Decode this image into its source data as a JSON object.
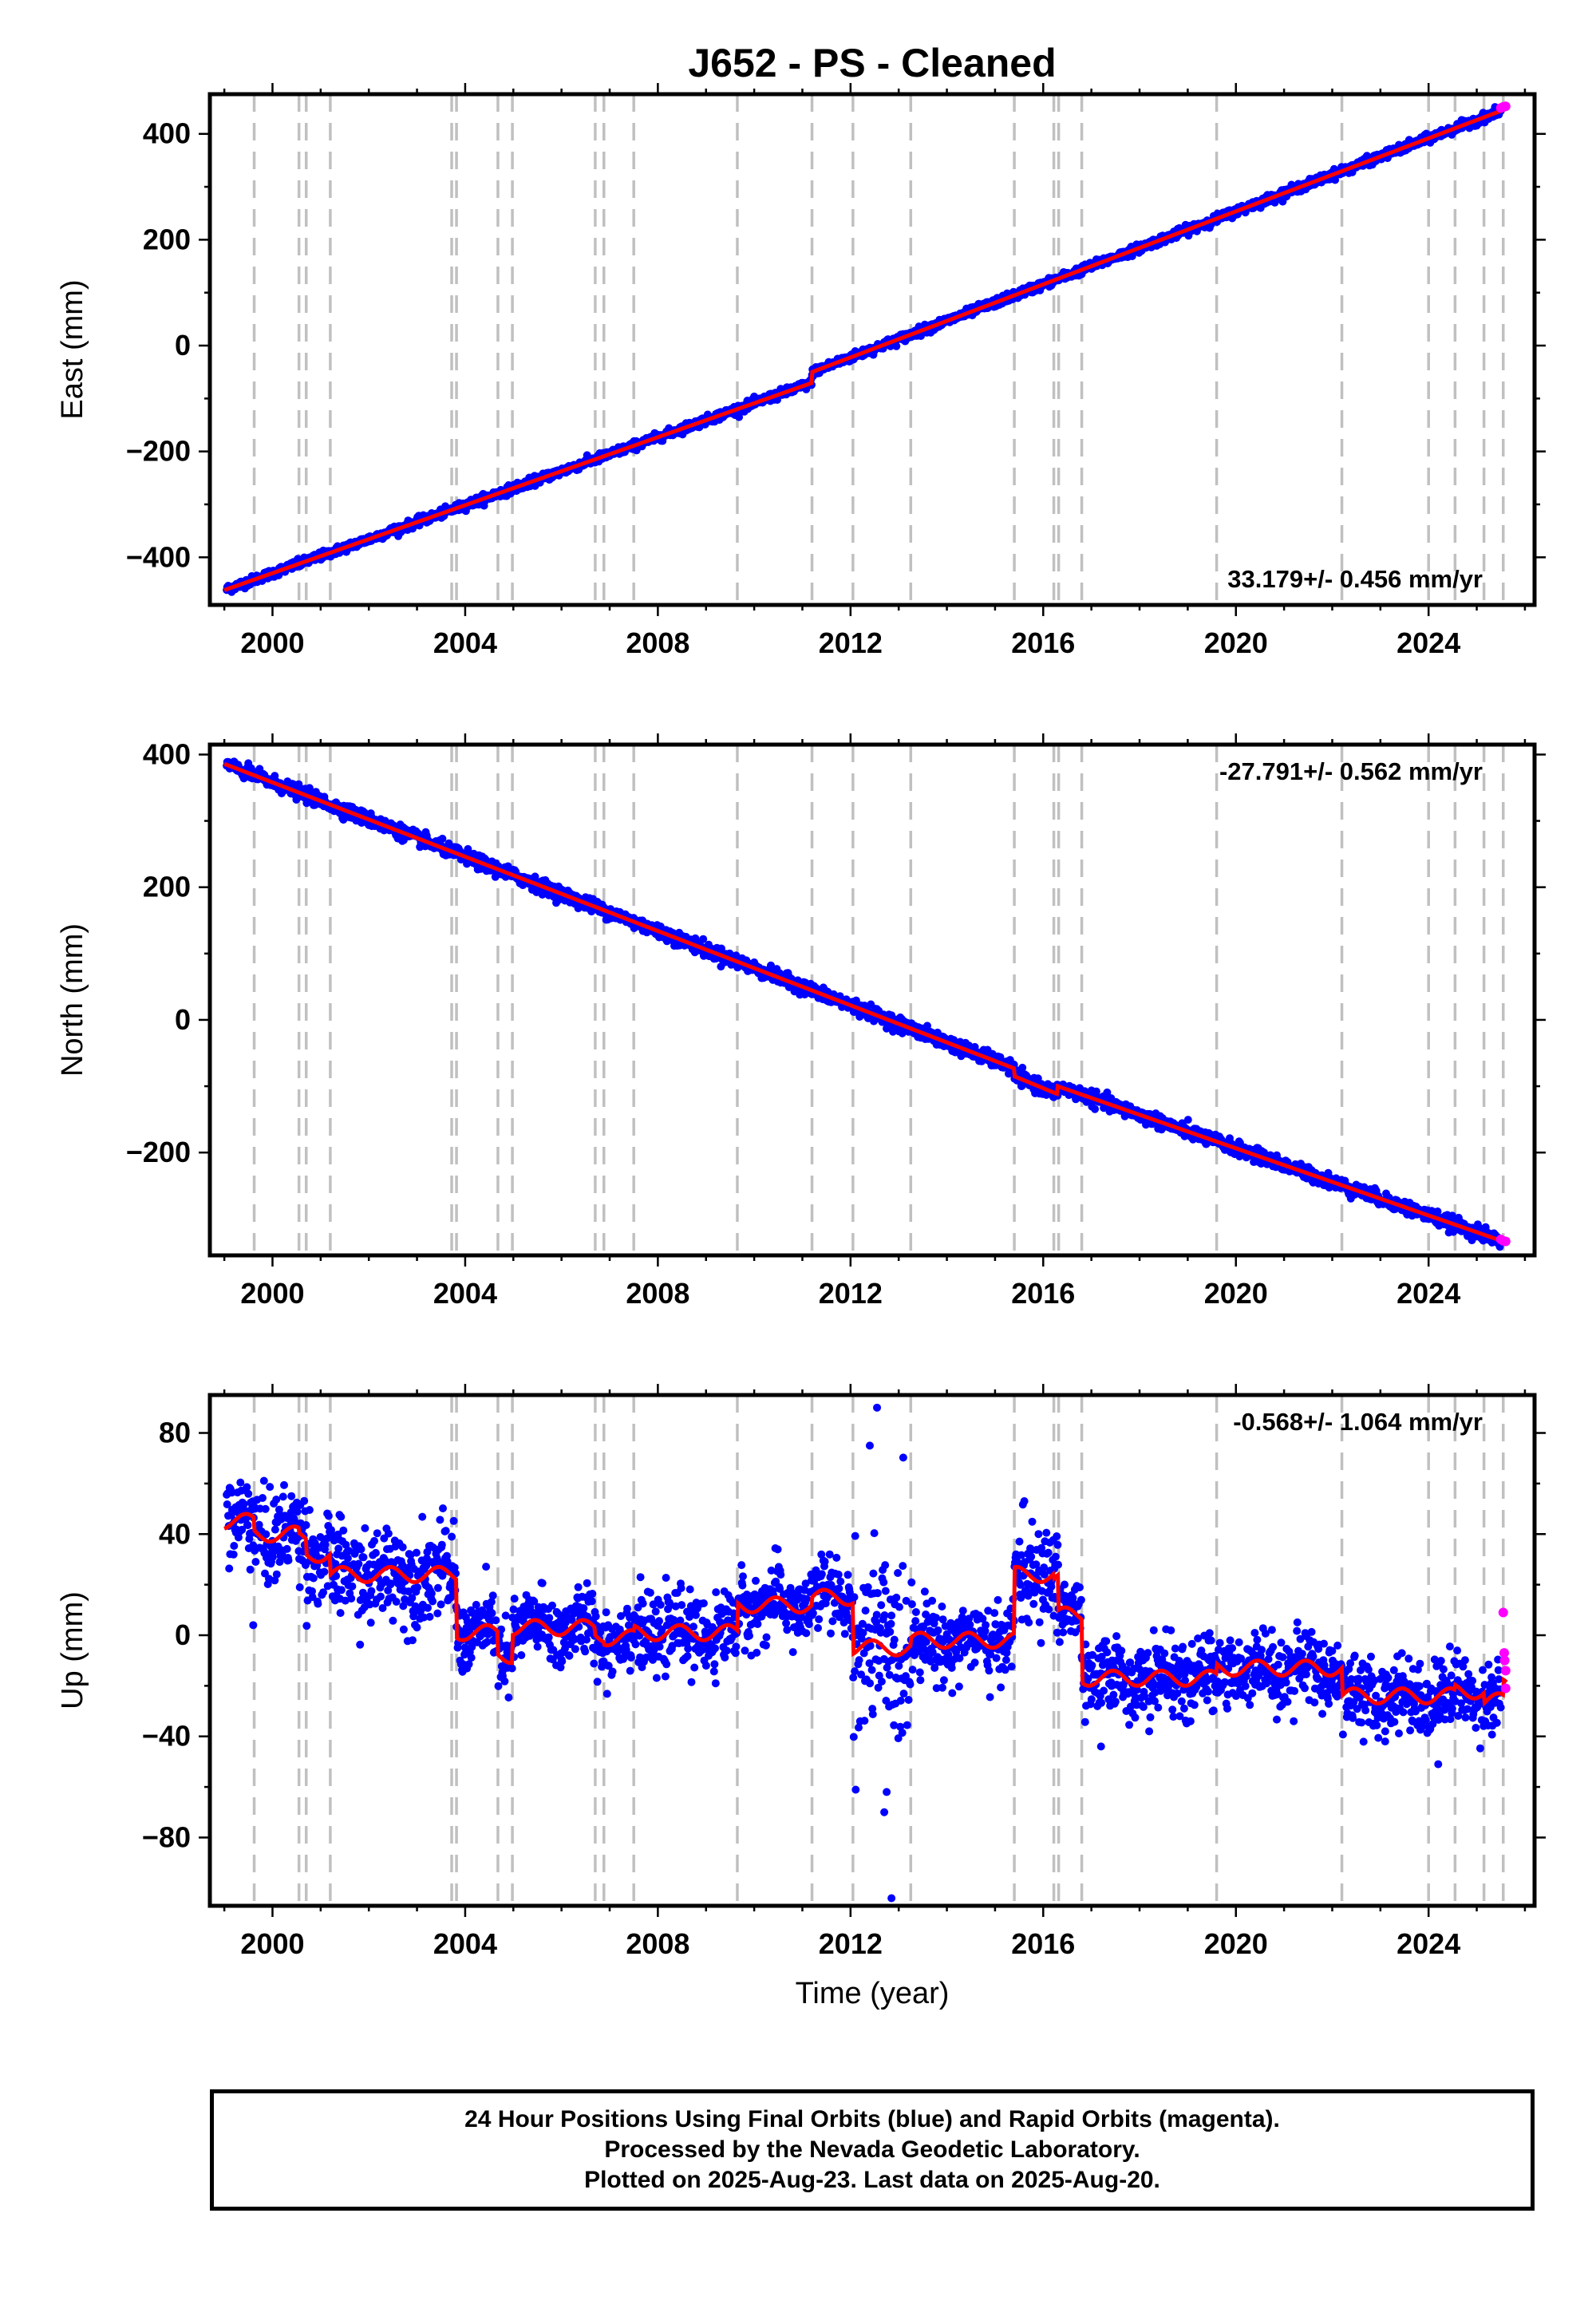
{
  "title": "J652  - PS - Cleaned",
  "x_axis_label": "Time (year)",
  "footer": {
    "line1": "24 Hour Positions Using Final Orbits (blue) and Rapid Orbits (magenta).",
    "line2": "Processed by the Nevada Geodetic Laboratory.",
    "line3": "Plotted on 2025-Aug-23. Last data on 2025-Aug-20."
  },
  "colors": {
    "final_orbits": "#0000ff",
    "rapid_orbits": "#ff00ff",
    "model": "#ff0000",
    "event_lines": "#c0c0c0"
  },
  "chart_data": [
    {
      "type": "scatter",
      "ylabel": "East (mm)",
      "xlim": [
        1998.7,
        2026.2
      ],
      "ylim": [
        -490,
        475
      ],
      "x_ticks": [
        2000,
        2004,
        2008,
        2012,
        2016,
        2020,
        2024
      ],
      "y_ticks": [
        -400,
        -200,
        0,
        200,
        400
      ],
      "rate_label": "33.179+/- 0.456 mm/yr",
      "rate_position": "bottom-right",
      "grid": false,
      "event_lines": [
        1999.62,
        2000.55,
        2000.7,
        2001.2,
        2003.72,
        2003.82,
        2004.68,
        2004.98,
        2006.7,
        2006.88,
        2007.5,
        2009.65,
        2011.2,
        2012.05,
        2013.25,
        2015.4,
        2016.22,
        2016.32,
        2016.8,
        2019.6,
        2022.2,
        2024.0,
        2024.55,
        2025.15,
        2025.55
      ],
      "model_segments": [
        {
          "x0": 1999.0,
          "x1": 2011.2,
          "y0": -462,
          "slope": 32.1
        },
        {
          "x0": 2011.2,
          "x1": 2025.62,
          "y0": -50,
          "slope": 34.5
        }
      ],
      "noise_mm": 4,
      "rapid_tail": [
        [
          2025.5,
          449
        ],
        [
          2025.55,
          451
        ],
        [
          2025.6,
          452
        ]
      ]
    },
    {
      "type": "scatter",
      "ylabel": "North (mm)",
      "xlim": [
        1998.7,
        2026.2
      ],
      "ylim": [
        -355,
        415
      ],
      "x_ticks": [
        2000,
        2004,
        2008,
        2012,
        2016,
        2020,
        2024
      ],
      "y_ticks": [
        -200,
        0,
        200,
        400
      ],
      "rate_label": "-27.791+/- 0.562 mm/yr",
      "rate_position": "top-right",
      "grid": false,
      "event_lines": [
        1999.62,
        2000.55,
        2000.7,
        2001.2,
        2003.72,
        2003.82,
        2004.68,
        2004.98,
        2006.7,
        2006.88,
        2007.5,
        2009.65,
        2011.2,
        2012.05,
        2013.25,
        2015.4,
        2016.22,
        2016.32,
        2016.8,
        2019.6,
        2022.2,
        2024.0,
        2024.55,
        2025.15,
        2025.55
      ],
      "model_segments": [
        {
          "x0": 1999.0,
          "x1": 2015.4,
          "y0": 386,
          "slope": -28.0
        },
        {
          "x0": 2015.4,
          "x1": 2016.3,
          "y0": -85,
          "slope": -30.0
        },
        {
          "x0": 2016.3,
          "x1": 2025.62,
          "y0": -100,
          "slope": -25.3
        }
      ],
      "noise_mm": 5,
      "rapid_tail": [
        [
          2025.5,
          -331
        ],
        [
          2025.55,
          -333
        ],
        [
          2025.6,
          -334
        ]
      ]
    },
    {
      "type": "scatter",
      "ylabel": "Up (mm)",
      "xlim": [
        1998.7,
        2026.2
      ],
      "ylim": [
        -107,
        95
      ],
      "x_ticks": [
        2000,
        2004,
        2008,
        2012,
        2016,
        2020,
        2024
      ],
      "y_ticks": [
        -80,
        -40,
        0,
        40,
        80
      ],
      "rate_label": "-0.568+/- 1.064 mm/yr",
      "rate_position": "top-right",
      "grid": false,
      "event_lines": [
        1999.62,
        2000.55,
        2000.7,
        2001.2,
        2003.72,
        2003.82,
        2004.68,
        2004.98,
        2006.7,
        2006.88,
        2007.5,
        2009.65,
        2011.2,
        2012.05,
        2013.25,
        2015.4,
        2016.22,
        2016.32,
        2016.8,
        2019.6,
        2022.2,
        2024.0,
        2024.55,
        2025.15,
        2025.55
      ],
      "model_steps": [
        [
          1999.0,
          45
        ],
        [
          1999.62,
          40
        ],
        [
          2000.55,
          38
        ],
        [
          2000.7,
          32
        ],
        [
          2001.2,
          24
        ],
        [
          2003.82,
          1
        ],
        [
          2004.68,
          -8
        ],
        [
          2004.98,
          3
        ],
        [
          2006.7,
          0
        ],
        [
          2006.88,
          -1
        ],
        [
          2007.5,
          1
        ],
        [
          2009.65,
          12
        ],
        [
          2011.2,
          15
        ],
        [
          2012.05,
          -5
        ],
        [
          2013.25,
          -2
        ],
        [
          2015.4,
          24
        ],
        [
          2016.22,
          22
        ],
        [
          2016.32,
          8
        ],
        [
          2016.8,
          -17
        ],
        [
          2019.6,
          -13
        ],
        [
          2022.2,
          -24
        ],
        [
          2024.0,
          -24
        ],
        [
          2024.55,
          -22
        ],
        [
          2025.15,
          -26
        ],
        [
          2025.55,
          -20
        ]
      ],
      "seasonal_amplitude_mm": 3,
      "noise_mm": 7,
      "outliers": [
        [
          1999.6,
          4
        ],
        [
          2012.55,
          90
        ],
        [
          2012.85,
          -104
        ],
        [
          2012.7,
          -70
        ],
        [
          2012.75,
          -62
        ],
        [
          2012.4,
          75
        ],
        [
          2017.2,
          -44
        ],
        [
          2018.2,
          -38
        ],
        [
          2024.2,
          -51
        ],
        [
          2021.2,
          -34
        ],
        [
          2023.1,
          -38
        ],
        [
          2009.2,
          -19
        ]
      ],
      "rapid_tail": [
        [
          2025.55,
          9
        ],
        [
          2025.57,
          -7
        ],
        [
          2025.58,
          -10
        ],
        [
          2025.6,
          -14
        ],
        [
          2025.6,
          -21
        ]
      ]
    }
  ]
}
